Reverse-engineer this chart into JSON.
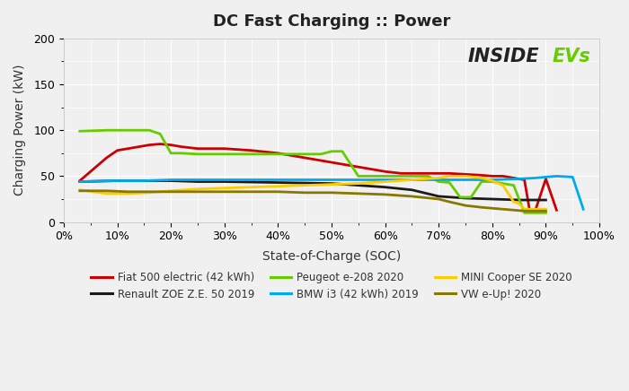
{
  "title": "DC Fast Charging :: Power",
  "xlabel": "State-of-Charge (SOC)",
  "ylabel": "Charging Power (kW)",
  "ylim": [
    0,
    200
  ],
  "xlim": [
    0,
    1.0
  ],
  "yticks": [
    0,
    50,
    100,
    150,
    200
  ],
  "xticks": [
    0,
    0.1,
    0.2,
    0.3,
    0.4,
    0.5,
    0.6,
    0.7,
    0.8,
    0.9,
    1.0
  ],
  "xtick_labels": [
    "0%",
    "10%",
    "20%",
    "30%",
    "40%",
    "50%",
    "60%",
    "70%",
    "80%",
    "90%",
    "100%"
  ],
  "background_color": "#f0f0f0",
  "plot_bg_color": "#f0f0f0",
  "grid_color": "#ffffff",
  "series": [
    {
      "name": "Fiat 500 electric (42 kWh)",
      "color": "#cc0000",
      "soc": [
        0.03,
        0.08,
        0.1,
        0.14,
        0.16,
        0.18,
        0.2,
        0.22,
        0.25,
        0.3,
        0.35,
        0.4,
        0.45,
        0.5,
        0.55,
        0.58,
        0.6,
        0.63,
        0.65,
        0.7,
        0.72,
        0.75,
        0.78,
        0.8,
        0.82,
        0.84,
        0.86,
        0.87,
        0.88,
        0.9,
        0.92
      ],
      "power": [
        45,
        70,
        78,
        82,
        84,
        85,
        84,
        82,
        80,
        80,
        78,
        75,
        70,
        65,
        60,
        57,
        55,
        53,
        53,
        53,
        53,
        52,
        51,
        50,
        50,
        48,
        46,
        12,
        12,
        47,
        13
      ]
    },
    {
      "name": "Renault ZOE Z.E. 50 2019",
      "color": "#1a1a1a",
      "soc": [
        0.03,
        0.1,
        0.15,
        0.2,
        0.25,
        0.3,
        0.4,
        0.5,
        0.6,
        0.65,
        0.7,
        0.75,
        0.8,
        0.85,
        0.9
      ],
      "power": [
        44,
        45,
        45,
        45,
        44,
        44,
        43,
        42,
        38,
        35,
        28,
        26,
        25,
        24,
        24
      ]
    },
    {
      "name": "Peugeot e-208 2020",
      "color": "#66cc00",
      "soc": [
        0.03,
        0.08,
        0.12,
        0.16,
        0.18,
        0.2,
        0.22,
        0.25,
        0.3,
        0.35,
        0.4,
        0.45,
        0.48,
        0.5,
        0.52,
        0.55,
        0.6,
        0.65,
        0.68,
        0.7,
        0.72,
        0.74,
        0.76,
        0.78,
        0.8,
        0.82,
        0.84,
        0.86,
        0.88,
        0.9
      ],
      "power": [
        99,
        100,
        100,
        100,
        96,
        75,
        75,
        74,
        74,
        74,
        74,
        74,
        74,
        77,
        77,
        50,
        50,
        50,
        50,
        44,
        43,
        27,
        27,
        44,
        44,
        42,
        40,
        10,
        10,
        10
      ]
    },
    {
      "name": "BMW i3 (42 kWh) 2019",
      "color": "#00aaee",
      "soc": [
        0.03,
        0.1,
        0.15,
        0.2,
        0.25,
        0.3,
        0.4,
        0.5,
        0.6,
        0.7,
        0.8,
        0.85,
        0.88,
        0.9,
        0.92,
        0.95,
        0.97
      ],
      "power": [
        44,
        45,
        45,
        46,
        46,
        46,
        46,
        46,
        46,
        46,
        46,
        47,
        48,
        49,
        50,
        49,
        14
      ]
    },
    {
      "name": "MINI Cooper SE 2020",
      "color": "#ffcc00",
      "soc": [
        0.03,
        0.08,
        0.12,
        0.16,
        0.2,
        0.25,
        0.3,
        0.35,
        0.4,
        0.45,
        0.5,
        0.55,
        0.6,
        0.65,
        0.7,
        0.72,
        0.75,
        0.78,
        0.8,
        0.82,
        0.84,
        0.85,
        0.86,
        0.88,
        0.9
      ],
      "power": [
        35,
        31,
        31,
        32,
        34,
        36,
        37,
        38,
        39,
        40,
        41,
        42,
        44,
        46,
        48,
        50,
        50,
        48,
        45,
        40,
        22,
        20,
        14,
        14,
        14
      ]
    },
    {
      "name": "VW e-Up! 2020",
      "color": "#887700",
      "soc": [
        0.03,
        0.08,
        0.12,
        0.16,
        0.2,
        0.25,
        0.3,
        0.35,
        0.4,
        0.45,
        0.5,
        0.55,
        0.6,
        0.65,
        0.7,
        0.72,
        0.75,
        0.78,
        0.8,
        0.82,
        0.84,
        0.86,
        0.88,
        0.9
      ],
      "power": [
        34,
        34,
        33,
        33,
        33,
        33,
        33,
        33,
        33,
        32,
        32,
        31,
        30,
        28,
        25,
        22,
        18,
        16,
        15,
        14,
        13,
        12,
        12,
        12
      ]
    }
  ],
  "legend": [
    {
      "name": "Fiat 500 electric (42 kWh)",
      "color": "#cc0000"
    },
    {
      "name": "Renault ZOE Z.E. 50 2019",
      "color": "#1a1a1a"
    },
    {
      "name": "Peugeot e-208 2020",
      "color": "#66cc00"
    },
    {
      "name": "BMW i3 (42 kWh) 2019",
      "color": "#00aaee"
    },
    {
      "name": "MINI Cooper SE 2020",
      "color": "#ffcc00"
    },
    {
      "name": "VW e-Up! 2020",
      "color": "#887700"
    }
  ],
  "watermark_inside_color": "#222222",
  "watermark_evs_color": "#66cc00",
  "watermark_inside_text": "INSIDE",
  "watermark_evs_text": "EVs"
}
